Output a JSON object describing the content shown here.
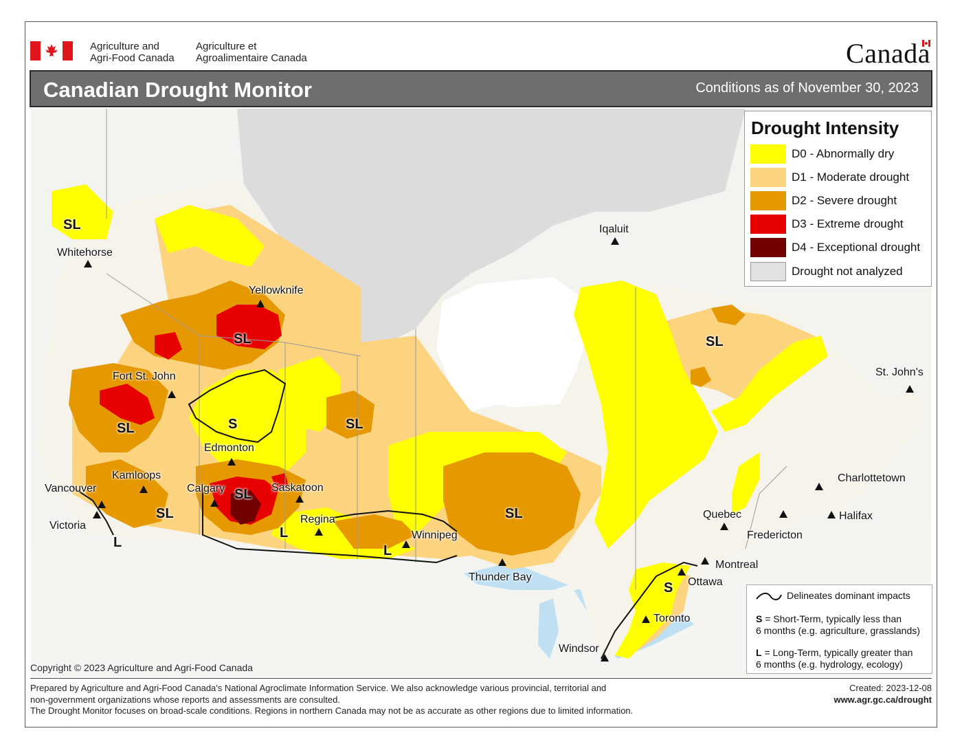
{
  "header": {
    "dept_en_line1": "Agriculture and",
    "dept_en_line2": "Agri-Food Canada",
    "dept_fr_line1": "Agriculture et",
    "dept_fr_line2": "Agroalimentaire Canada",
    "wordmark": "Canada"
  },
  "title": "Canadian Drought Monitor",
  "subtitle": "Conditions as of November 30, 2023",
  "legend": {
    "heading": "Drought Intensity",
    "items": [
      {
        "label": "D0 - Abnormally dry",
        "color": "#ffff00"
      },
      {
        "label": "D1 - Moderate drought",
        "color": "#fcd37f"
      },
      {
        "label": "D2 - Severe drought",
        "color": "#e69800"
      },
      {
        "label": "D3 - Extreme drought",
        "color": "#e60000"
      },
      {
        "label": "D4 - Exceptional drought",
        "color": "#730000"
      },
      {
        "label": "Drought not analyzed",
        "color": "#e1e1e1"
      }
    ]
  },
  "cities": [
    "Whitehorse",
    "Yellowknife",
    "Iqaluit",
    "Fort St. John",
    "Edmonton",
    "Kamloops",
    "Vancouver",
    "Victoria",
    "Calgary",
    "Saskatoon",
    "Regina",
    "Winnipeg",
    "Thunder Bay",
    "Quebec",
    "Fredericton",
    "Charlottetown",
    "Halifax",
    "St. John's",
    "Montreal",
    "Ottawa",
    "Toronto",
    "Windsor"
  ],
  "impact_labels": {
    "sl": "SL",
    "s": "S",
    "l": "L"
  },
  "impacts_box": {
    "delineates": "Delineates dominant impacts",
    "s_key": "S",
    "s_line1": " = Short-Term, typically less than",
    "s_line2": "6 months (e.g. agriculture, grasslands)",
    "l_key": "L",
    "l_line1": " = Long-Term, typically greater  than",
    "l_line2": "6 months (e.g. hydrology, ecology)"
  },
  "copyright": "Copyright © 2023 Agriculture and Agri-Food Canada",
  "footer": {
    "line1": "Prepared by Agriculture and Agri-Food Canada's National Agroclimate Information Service.  We also acknowledge various provincial, territorial and",
    "line2": "non-government organizations whose reports and assessments are consulted.",
    "line3": "The Drought Monitor focuses on broad-scale conditions.  Regions in northern Canada may not be as accurate as other regions due to limited information."
  },
  "created": "Created: 2023-12-08",
  "url": "www.agr.gc.ca/drought",
  "colors": {
    "water": "#d9ecf8",
    "land_outside": "#f4f4f2",
    "title_bg": "#6e6e6e"
  }
}
